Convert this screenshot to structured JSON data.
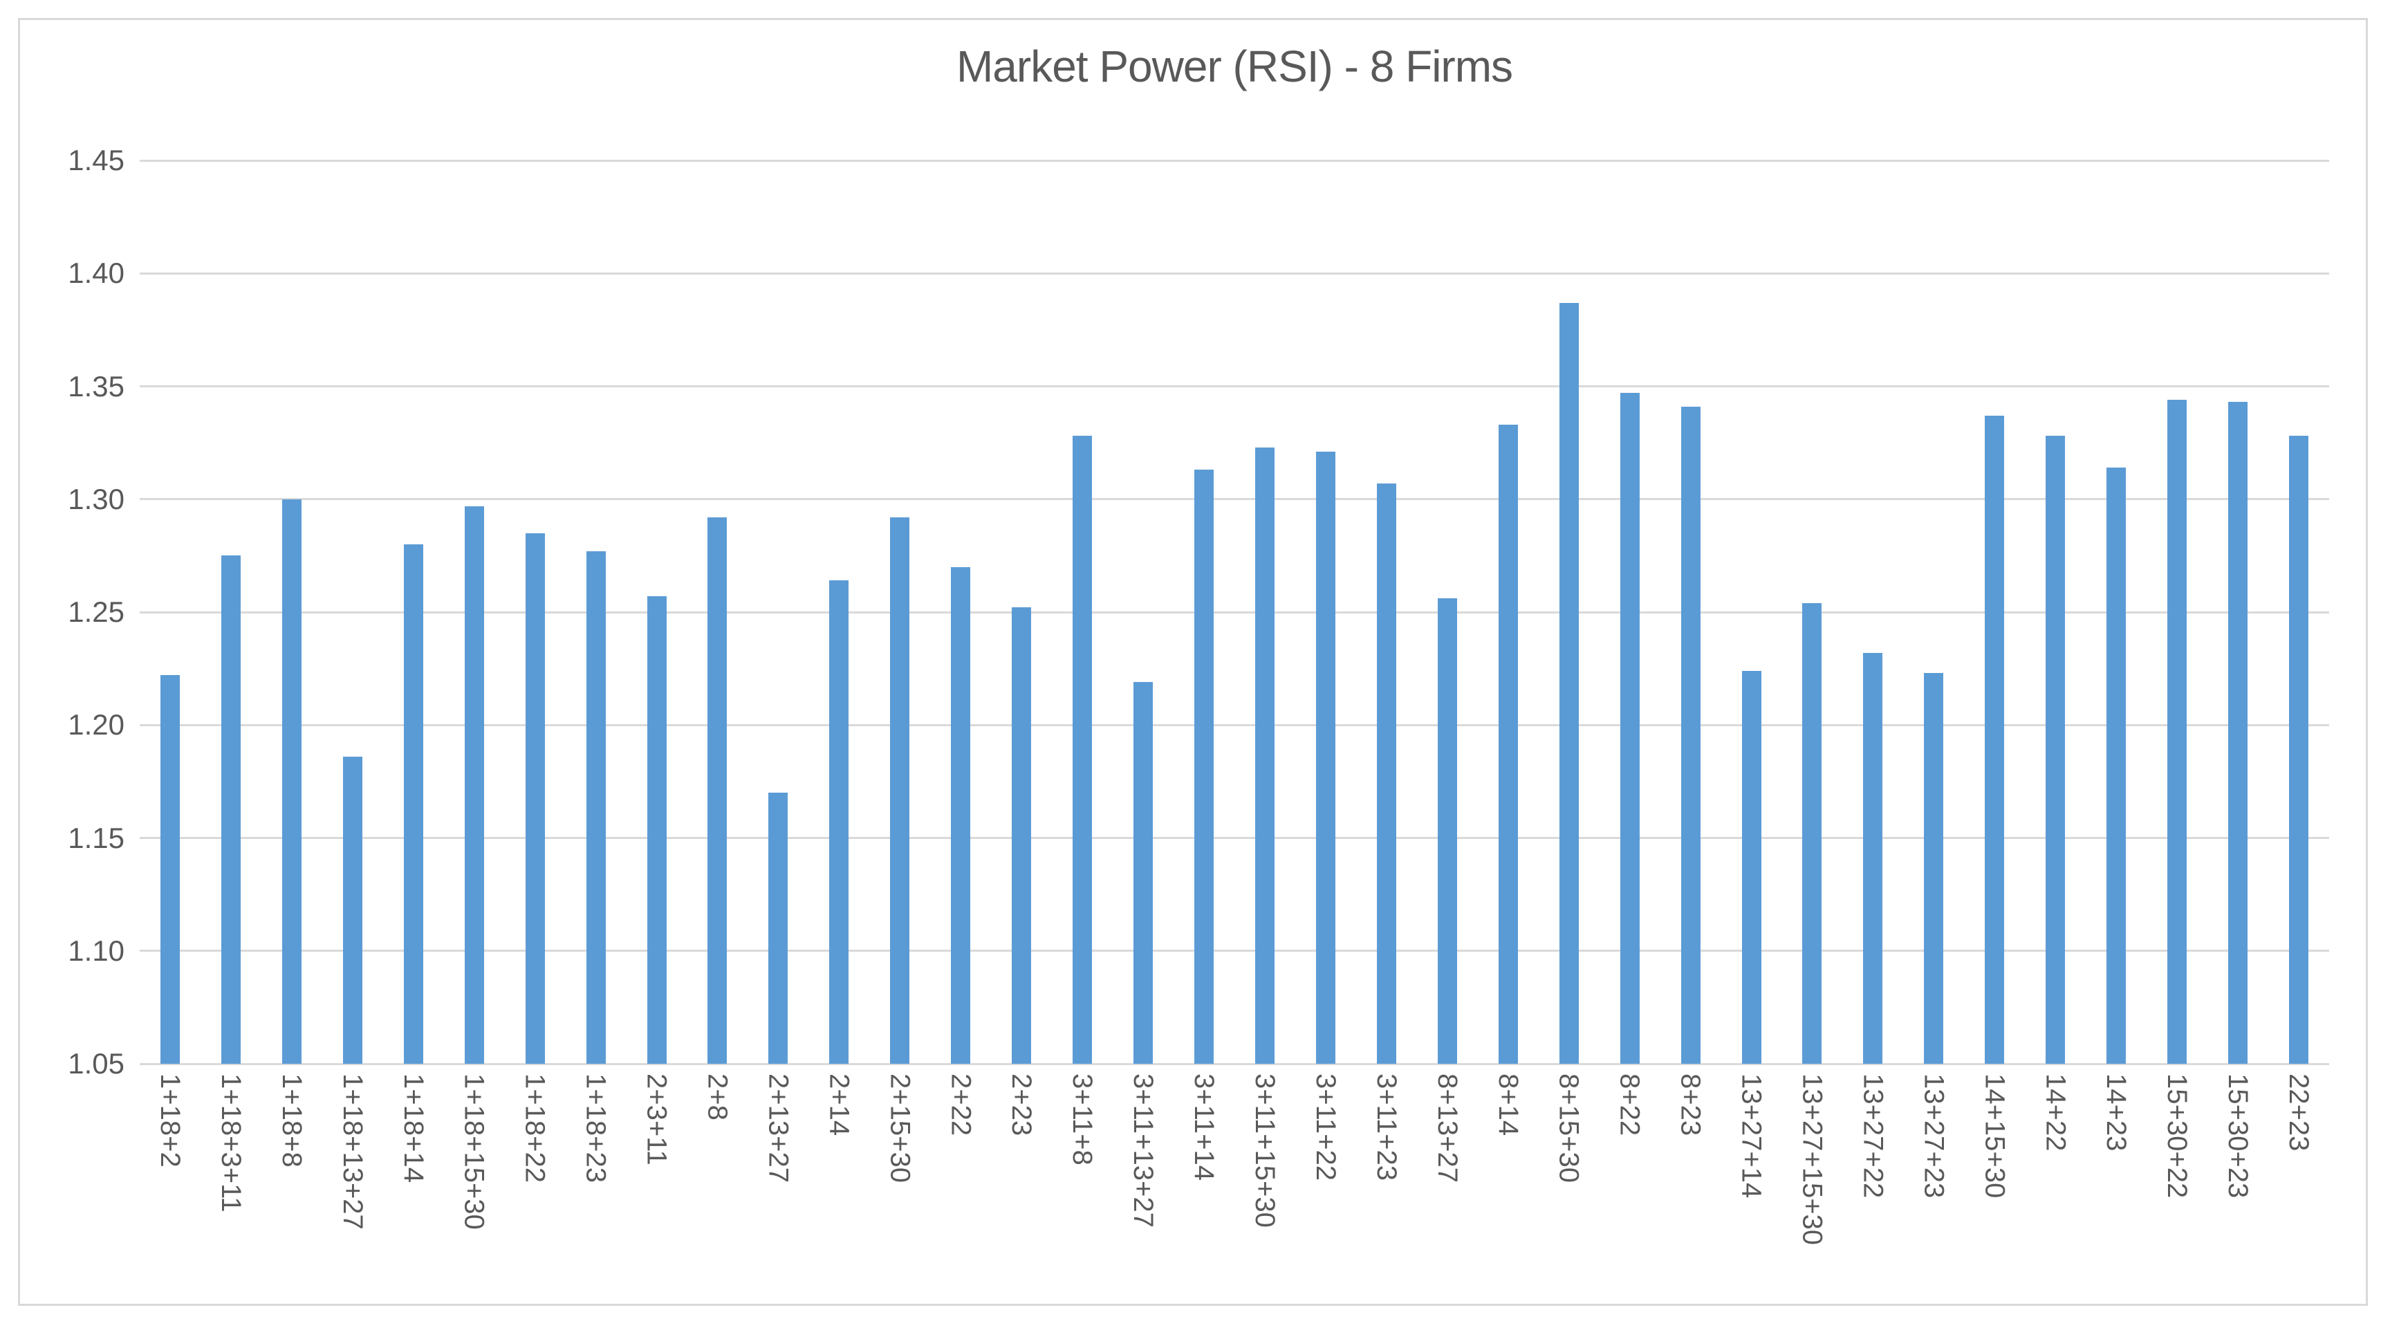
{
  "chart_data": {
    "type": "bar",
    "title": "Market Power (RSI) - 8 Firms",
    "xlabel": "",
    "ylabel": "",
    "ylim": [
      1.05,
      1.45
    ],
    "ytick_step": 0.05,
    "ytick_labels": [
      "1.05",
      "1.10",
      "1.15",
      "1.20",
      "1.25",
      "1.30",
      "1.35",
      "1.40",
      "1.45"
    ],
    "grid": true,
    "legend_position": "none",
    "bar_color": "#5B9BD5",
    "gridline_color": "#D9D9D9",
    "text_color": "#595959",
    "frame_border_color": "#D9D9D9",
    "categories": [
      "1+18+2",
      "1+18+3+11",
      "1+18+8",
      "1+18+13+27",
      "1+18+14",
      "1+18+15+30",
      "1+18+22",
      "1+18+23",
      "2+3+11",
      "2+8",
      "2+13+27",
      "2+14",
      "2+15+30",
      "2+22",
      "2+23",
      "3+11+8",
      "3+11+13+27",
      "3+11+14",
      "3+11+15+30",
      "3+11+22",
      "3+11+23",
      "8+13+27",
      "8+14",
      "8+15+30",
      "8+22",
      "8+23",
      "13+27+14",
      "13+27+15+30",
      "13+27+22",
      "13+27+23",
      "14+15+30",
      "14+22",
      "14+23",
      "15+30+22",
      "15+30+23",
      "22+23"
    ],
    "values": [
      1.222,
      1.275,
      1.3,
      1.186,
      1.28,
      1.297,
      1.285,
      1.277,
      1.257,
      1.292,
      1.17,
      1.264,
      1.292,
      1.27,
      1.252,
      1.328,
      1.219,
      1.313,
      1.323,
      1.321,
      1.307,
      1.256,
      1.333,
      1.387,
      1.347,
      1.341,
      1.224,
      1.254,
      1.232,
      1.223,
      1.337,
      1.328,
      1.314,
      1.344,
      1.343,
      1.328
    ]
  }
}
